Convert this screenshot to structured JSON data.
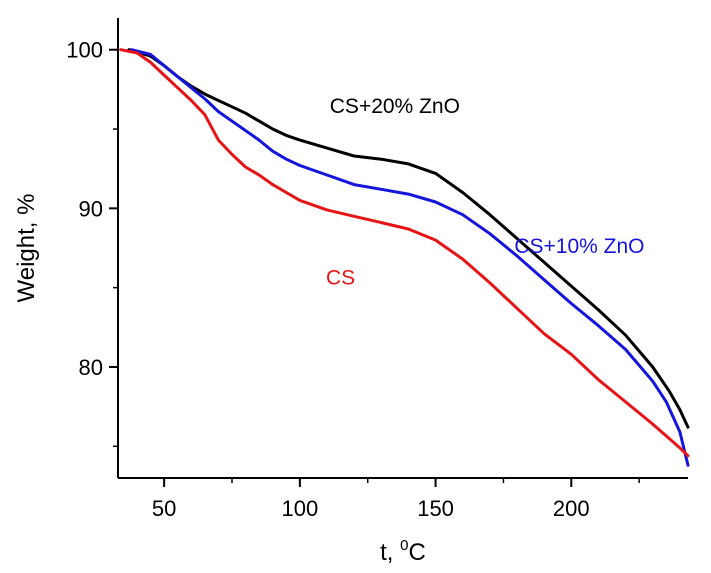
{
  "chart_data": {
    "type": "line",
    "xlabel": "t,",
    "xlabel_unit": "C",
    "xlabel_unit_sup": "0",
    "ylabel": "Weight, %",
    "xlim": [
      33,
      243
    ],
    "ylim": [
      73,
      102
    ],
    "xticks": [
      {
        "value": 50,
        "label": "50"
      },
      {
        "value": 100,
        "label": "100"
      },
      {
        "value": 150,
        "label": "150"
      },
      {
        "value": 200,
        "label": "200"
      }
    ],
    "yticks": [
      {
        "value": 80,
        "label": "80"
      },
      {
        "value": 90,
        "label": "90"
      },
      {
        "value": 100,
        "label": "100"
      }
    ],
    "x_minor_step": 25,
    "y_minor_step": 5,
    "grid": false,
    "series": [
      {
        "name": "CS+20% ZnO",
        "color": "#000000",
        "points": [
          [
            37,
            100.0
          ],
          [
            45,
            99.6
          ],
          [
            50,
            99.0
          ],
          [
            55,
            98.3
          ],
          [
            60,
            97.7
          ],
          [
            65,
            97.2
          ],
          [
            70,
            96.8
          ],
          [
            75,
            96.4
          ],
          [
            80,
            96.0
          ],
          [
            85,
            95.5
          ],
          [
            90,
            95.0
          ],
          [
            95,
            94.6
          ],
          [
            100,
            94.3
          ],
          [
            110,
            93.8
          ],
          [
            120,
            93.3
          ],
          [
            130,
            93.1
          ],
          [
            140,
            92.8
          ],
          [
            150,
            92.2
          ],
          [
            160,
            91.0
          ],
          [
            170,
            89.6
          ],
          [
            180,
            88.1
          ],
          [
            190,
            86.6
          ],
          [
            200,
            85.1
          ],
          [
            210,
            83.6
          ],
          [
            220,
            82.0
          ],
          [
            230,
            80.0
          ],
          [
            236,
            78.5
          ],
          [
            240,
            77.3
          ],
          [
            243,
            76.2
          ]
        ],
        "label_pos": [
          135,
          96.0
        ]
      },
      {
        "name": "CS+10% ZnO",
        "color": "#1414dc",
        "points": [
          [
            38,
            100.0
          ],
          [
            45,
            99.7
          ],
          [
            50,
            99.0
          ],
          [
            55,
            98.3
          ],
          [
            60,
            97.6
          ],
          [
            65,
            96.9
          ],
          [
            70,
            96.1
          ],
          [
            75,
            95.5
          ],
          [
            80,
            94.9
          ],
          [
            85,
            94.3
          ],
          [
            90,
            93.6
          ],
          [
            95,
            93.1
          ],
          [
            100,
            92.7
          ],
          [
            110,
            92.1
          ],
          [
            120,
            91.5
          ],
          [
            130,
            91.2
          ],
          [
            140,
            90.9
          ],
          [
            150,
            90.4
          ],
          [
            160,
            89.6
          ],
          [
            170,
            88.4
          ],
          [
            180,
            87.0
          ],
          [
            190,
            85.5
          ],
          [
            200,
            84.0
          ],
          [
            210,
            82.6
          ],
          [
            220,
            81.1
          ],
          [
            230,
            79.1
          ],
          [
            235,
            77.8
          ],
          [
            240,
            75.9
          ],
          [
            243,
            73.8
          ]
        ],
        "label_pos": [
          203,
          87.2
        ]
      },
      {
        "name": "CS",
        "color": "#e61414",
        "points": [
          [
            34,
            100.0
          ],
          [
            40,
            99.8
          ],
          [
            45,
            99.2
          ],
          [
            50,
            98.4
          ],
          [
            55,
            97.6
          ],
          [
            60,
            96.8
          ],
          [
            65,
            95.9
          ],
          [
            70,
            94.3
          ],
          [
            75,
            93.4
          ],
          [
            80,
            92.6
          ],
          [
            85,
            92.1
          ],
          [
            90,
            91.5
          ],
          [
            95,
            91.0
          ],
          [
            100,
            90.5
          ],
          [
            110,
            89.9
          ],
          [
            120,
            89.5
          ],
          [
            130,
            89.1
          ],
          [
            140,
            88.7
          ],
          [
            150,
            88.0
          ],
          [
            160,
            86.8
          ],
          [
            170,
            85.3
          ],
          [
            180,
            83.7
          ],
          [
            190,
            82.1
          ],
          [
            200,
            80.8
          ],
          [
            210,
            79.2
          ],
          [
            220,
            77.8
          ],
          [
            230,
            76.4
          ],
          [
            240,
            74.9
          ],
          [
            243,
            74.4
          ]
        ],
        "label_pos": [
          115,
          85.2
        ]
      }
    ]
  }
}
